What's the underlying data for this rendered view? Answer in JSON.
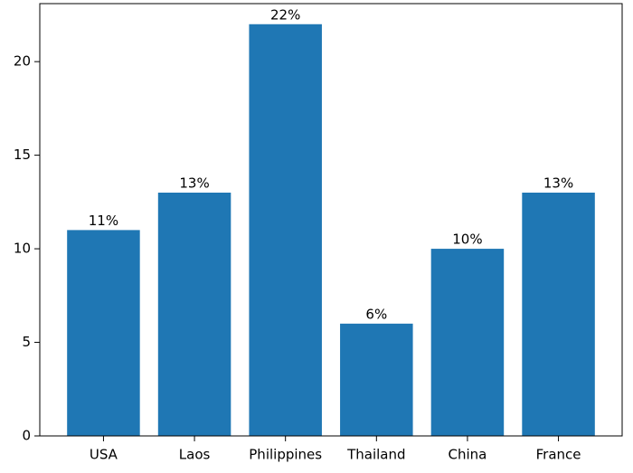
{
  "chart_data": {
    "type": "bar",
    "categories": [
      "USA",
      "Laos",
      "Philippines",
      "Thailand",
      "China",
      "France"
    ],
    "values": [
      11,
      13,
      22,
      6,
      10,
      13
    ],
    "value_labels": [
      "11%",
      "13%",
      "22%",
      "6%",
      "10%",
      "13%"
    ],
    "color": "#1f77b4",
    "ylim": [
      0,
      23.1
    ],
    "yticks": [
      0,
      5,
      10,
      15,
      20
    ]
  }
}
